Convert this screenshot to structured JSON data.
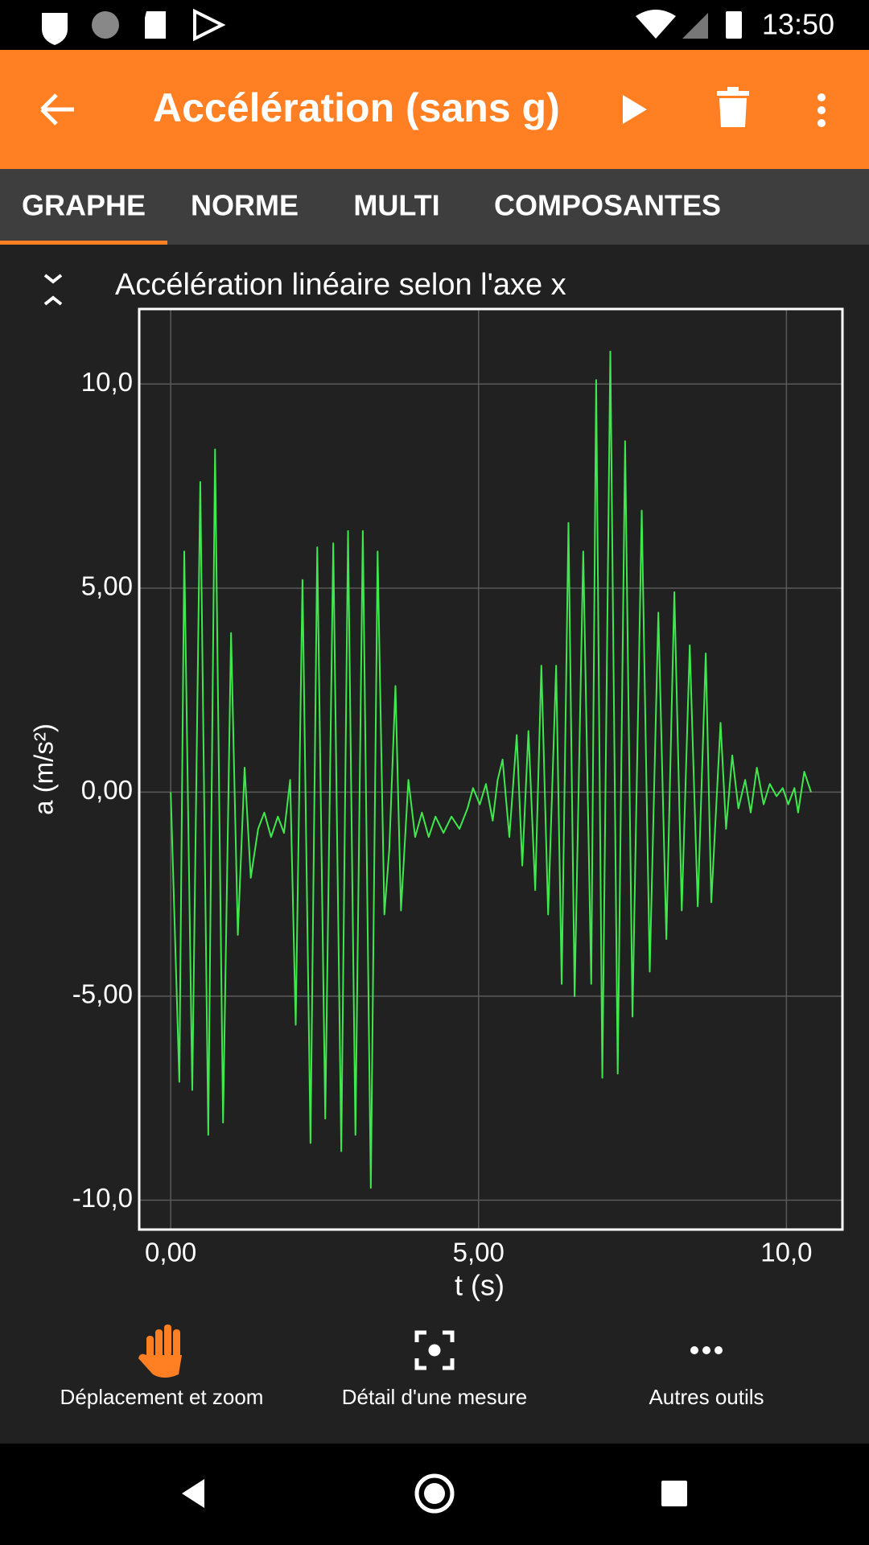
{
  "status_bar": {
    "time": "13:50"
  },
  "app_bar": {
    "title": "Accélération (sans g)"
  },
  "tabs": [
    "GRAPHE",
    "NORME",
    "MULTI",
    "COMPOSANTES"
  ],
  "chart_data": {
    "type": "line",
    "title": "Accélération linéaire selon l'axe x",
    "x_label": "t (s)",
    "y_label": "a (m/s²)",
    "color": "#3fe84d",
    "grid": true,
    "xlim": [
      -0.512,
      10.91
    ],
    "ylim": [
      -10.72,
      11.84
    ],
    "xticks": [
      {
        "value": 0,
        "label": "0,00"
      },
      {
        "value": 5,
        "label": "5,00"
      },
      {
        "value": 10,
        "label": "10,0"
      }
    ],
    "yticks": [
      {
        "value": -10,
        "label": "-10,0"
      },
      {
        "value": -5,
        "label": "-5,00"
      },
      {
        "value": 0,
        "label": "0,00"
      },
      {
        "value": 5,
        "label": "5,00"
      },
      {
        "value": 10,
        "label": "10,0"
      }
    ],
    "x": [
      0,
      0.14,
      0.22,
      0.35,
      0.48,
      0.61,
      0.72,
      0.85,
      0.98,
      1.09,
      1.2,
      1.3,
      1.42,
      1.52,
      1.63,
      1.74,
      1.84,
      1.94,
      2.03,
      2.14,
      2.27,
      2.38,
      2.51,
      2.64,
      2.77,
      2.88,
      3.0,
      3.12,
      3.25,
      3.36,
      3.47,
      3.55,
      3.65,
      3.74,
      3.86,
      3.97,
      4.08,
      4.19,
      4.3,
      4.43,
      4.56,
      4.69,
      4.82,
      4.91,
      5.02,
      5.12,
      5.23,
      5.31,
      5.39,
      5.5,
      5.62,
      5.71,
      5.81,
      5.92,
      6.02,
      6.13,
      6.26,
      6.35,
      6.46,
      6.56,
      6.7,
      6.83,
      6.91,
      7.01,
      7.14,
      7.26,
      7.38,
      7.5,
      7.65,
      7.78,
      7.92,
      8.05,
      8.18,
      8.3,
      8.43,
      8.56,
      8.69,
      8.78,
      8.93,
      9.02,
      9.12,
      9.22,
      9.33,
      9.42,
      9.52,
      9.63,
      9.73,
      9.84,
      9.94,
      10.03,
      10.13,
      10.19,
      10.29,
      10.4
    ],
    "values": [
      0,
      -7.1,
      5.9,
      -7.3,
      7.6,
      -8.4,
      8.4,
      -8.1,
      3.9,
      -3.5,
      0.6,
      -2.1,
      -0.9,
      -0.5,
      -1.1,
      -0.6,
      -1.0,
      0.3,
      -5.7,
      5.2,
      -8.6,
      6.0,
      -8.0,
      6.1,
      -8.8,
      6.4,
      -8.4,
      6.4,
      -9.7,
      5.9,
      -3.0,
      -1.4,
      2.6,
      -2.9,
      0.3,
      -1.1,
      -0.5,
      -1.1,
      -0.6,
      -1.0,
      -0.6,
      -0.9,
      -0.4,
      0.1,
      -0.3,
      0.2,
      -0.7,
      0.3,
      0.8,
      -1.1,
      1.4,
      -1.8,
      1.5,
      -2.4,
      3.1,
      -3.0,
      3.1,
      -4.7,
      6.6,
      -5.0,
      5.9,
      -4.7,
      10.1,
      -7.0,
      10.8,
      -6.9,
      8.6,
      -5.5,
      6.9,
      -4.4,
      4.4,
      -3.6,
      4.9,
      -2.9,
      3.6,
      -2.8,
      3.4,
      -2.7,
      1.7,
      -0.9,
      0.9,
      -0.4,
      0.3,
      -0.5,
      0.6,
      -0.3,
      0.2,
      -0.1,
      0.1,
      -0.3,
      0.1,
      -0.5,
      0.5,
      0.0
    ]
  },
  "tools": [
    "Déplacement et zoom",
    "Détail d'une mesure",
    "Autres outils"
  ]
}
